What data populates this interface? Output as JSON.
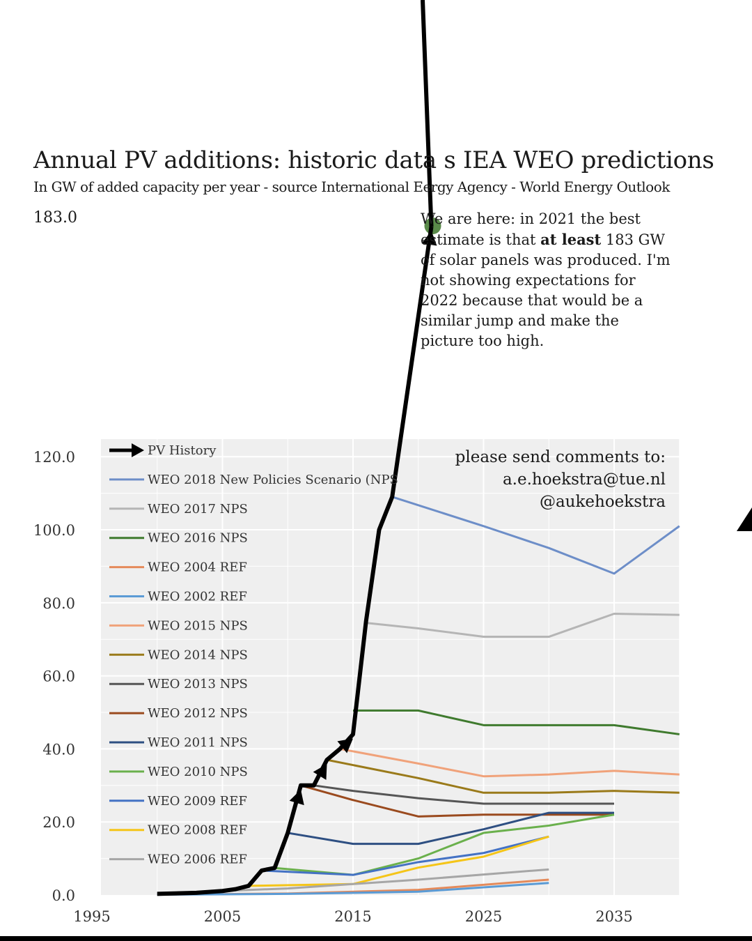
{
  "header": {
    "title_a": "Annual PV additions: historic data ",
    "title_b": "s IEA WEO predictions",
    "subtitle_a": "In GW of added capacity per year - source International E",
    "subtitle_b": "ergy Agency - World Energy Outlook",
    "top_value_label": "183.0"
  },
  "annotation": {
    "text_1": "We are here: in 2021 the best estimate is that ",
    "bold": "at least",
    "text_2": " 183 GW of solar panels was produced. I'm not showing expectations for 2022 because that would be a similar jump and make the picture too high."
  },
  "credits": {
    "line1": "please send comments to:",
    "line2": "a.e.hoekstra@tue.nl",
    "line3": "@aukehoekstra"
  },
  "colors": {
    "history": "#000000",
    "marker": "#5a8a4a",
    "plot_bg": "#efefef",
    "grid": "#ffffff"
  },
  "chart_data": {
    "type": "line",
    "x_ticks": [
      1995,
      2005,
      2015,
      2025,
      2035
    ],
    "y_ticks": [
      "0.0",
      "20.0",
      "40.0",
      "60.0",
      "80.0",
      "100.0",
      "120.0"
    ],
    "xlim": [
      1995,
      2040
    ],
    "ylim": [
      0,
      120
    ],
    "history": {
      "name": "PV History",
      "color": "#000000",
      "points": [
        [
          2000,
          0.3
        ],
        [
          2003,
          0.6
        ],
        [
          2005,
          1.1
        ],
        [
          2006,
          1.6
        ],
        [
          2007,
          2.5
        ],
        [
          2008,
          6.7
        ],
        [
          2009,
          7.4
        ],
        [
          2010,
          17
        ],
        [
          2011,
          30
        ],
        [
          2012,
          30
        ],
        [
          2013,
          37
        ],
        [
          2014,
          40
        ],
        [
          2015,
          44
        ],
        [
          2016,
          75
        ],
        [
          2017,
          100
        ],
        [
          2018,
          109
        ],
        [
          2021,
          183
        ]
      ]
    },
    "series": [
      {
        "name": "WEO 2018 New Policies Scenario (NPS",
        "color": "#6d8ec8",
        "points": [
          [
            2018,
            109
          ],
          [
            2025,
            101
          ],
          [
            2030,
            95
          ],
          [
            2035,
            88
          ],
          [
            2040,
            101
          ]
        ]
      },
      {
        "name": "WEO 2017 NPS",
        "color": "#b5b5b5",
        "points": [
          [
            2016,
            74.5
          ],
          [
            2020,
            73
          ],
          [
            2025,
            70.7
          ],
          [
            2030,
            70.7
          ],
          [
            2035,
            77
          ],
          [
            2040,
            76.7
          ]
        ]
      },
      {
        "name": "WEO 2016 NPS",
        "color": "#3f7a2e",
        "points": [
          [
            2015,
            50.5
          ],
          [
            2020,
            50.5
          ],
          [
            2025,
            46.5
          ],
          [
            2030,
            46.5
          ],
          [
            2035,
            46.5
          ],
          [
            2040,
            44
          ]
        ]
      },
      {
        "name": "WEO 2004 REF",
        "color": "#e48a5a",
        "points": [
          [
            2000,
            0.1
          ],
          [
            2010,
            0.4
          ],
          [
            2020,
            1.4
          ],
          [
            2030,
            4.2
          ]
        ]
      },
      {
        "name": "WEO 2002 REF",
        "color": "#5b9bd5",
        "points": [
          [
            2000,
            0.1
          ],
          [
            2010,
            0.3
          ],
          [
            2020,
            0.9
          ],
          [
            2030,
            3.3
          ]
        ]
      },
      {
        "name": "WEO 2015 NPS",
        "color": "#f0a27a",
        "points": [
          [
            2014,
            40
          ],
          [
            2020,
            36
          ],
          [
            2025,
            32.5
          ],
          [
            2030,
            33
          ],
          [
            2035,
            34
          ],
          [
            2040,
            33
          ]
        ]
      },
      {
        "name": "WEO 2014 NPS",
        "color": "#9a7a1a",
        "points": [
          [
            2013,
            37
          ],
          [
            2020,
            32
          ],
          [
            2025,
            28
          ],
          [
            2030,
            28
          ],
          [
            2035,
            28.5
          ],
          [
            2040,
            28
          ]
        ]
      },
      {
        "name": "WEO 2013 NPS",
        "color": "#555555",
        "points": [
          [
            2012,
            30
          ],
          [
            2015,
            28.5
          ],
          [
            2020,
            26.5
          ],
          [
            2025,
            25
          ],
          [
            2030,
            25
          ],
          [
            2035,
            25
          ]
        ]
      },
      {
        "name": "WEO 2012 NPS",
        "color": "#9a4a1e",
        "points": [
          [
            2011,
            30
          ],
          [
            2015,
            26
          ],
          [
            2020,
            21.5
          ],
          [
            2025,
            22
          ],
          [
            2030,
            22
          ],
          [
            2035,
            22
          ]
        ]
      },
      {
        "name": "WEO 2011 NPS",
        "color": "#2e4f82",
        "points": [
          [
            2010,
            17
          ],
          [
            2015,
            14
          ],
          [
            2020,
            14
          ],
          [
            2025,
            18
          ],
          [
            2030,
            22.5
          ],
          [
            2035,
            22.5
          ]
        ]
      },
      {
        "name": "WEO 2010 NPS",
        "color": "#6ab04c",
        "points": [
          [
            2009,
            7.4
          ],
          [
            2015,
            5.5
          ],
          [
            2020,
            10
          ],
          [
            2025,
            17
          ],
          [
            2030,
            19
          ],
          [
            2035,
            22
          ]
        ]
      },
      {
        "name": "WEO 2009 REF",
        "color": "#4472c4",
        "points": [
          [
            2008,
            6.7
          ],
          [
            2015,
            5.5
          ],
          [
            2020,
            9
          ],
          [
            2025,
            11.5
          ],
          [
            2030,
            16
          ]
        ]
      },
      {
        "name": "WEO 2008 REF",
        "color": "#f5c518",
        "points": [
          [
            2007,
            2.5
          ],
          [
            2015,
            3
          ],
          [
            2020,
            7.5
          ],
          [
            2025,
            10.5
          ],
          [
            2030,
            16
          ]
        ]
      },
      {
        "name": "WEO 2006 REF",
        "color": "#a6a6a6",
        "points": [
          [
            2005,
            1.1
          ],
          [
            2010,
            1.8
          ],
          [
            2020,
            4.2
          ],
          [
            2030,
            7
          ]
        ]
      }
    ]
  }
}
